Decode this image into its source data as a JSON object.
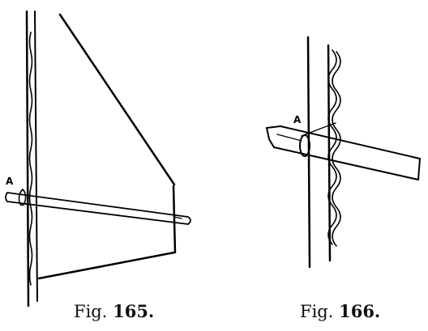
{
  "figures": [
    {
      "id": "fig-165",
      "caption_prefix": "Fig.",
      "caption_number": "165.",
      "point_label": "A"
    },
    {
      "id": "fig-166",
      "caption_prefix": "Fig.",
      "caption_number": "166.",
      "point_label": "A"
    }
  ],
  "colors": {
    "ink": "#000000",
    "paper": "#ffffff"
  }
}
